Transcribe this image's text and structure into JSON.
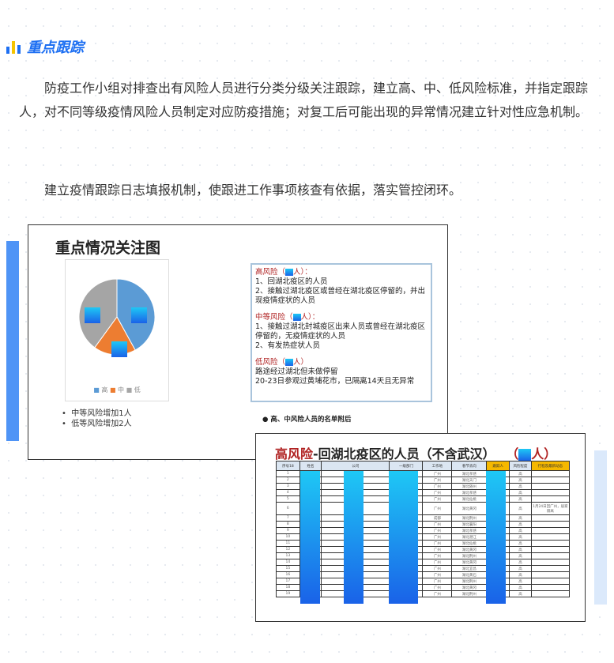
{
  "section": {
    "title": "重点跟踪",
    "accent": "#1d6ff2"
  },
  "paragraphs": [
    "防疫工作小组对排查出有风险人员进行分类分级关注跟踪，建立高、中、低风险标准，并指定跟踪人，对不同等级疫情风险人员制定对应防疫措施；对复工后可能出现的异常情况建立针对性应急机制。",
    "建立疫情跟踪日志填报机制，使跟进工作事项核查有依据，落实管控闭环。"
  ],
  "slide1": {
    "title": "重点情况关注图",
    "pie": {
      "slices": [
        {
          "label": "高",
          "fraction": 0.42,
          "color": "#5b9bd5"
        },
        {
          "label": "中",
          "fraction": 0.18,
          "color": "#ed7d31"
        },
        {
          "label": "低",
          "fraction": 0.4,
          "color": "#a5a5a5"
        }
      ]
    },
    "bullets": [
      "中等风险增加1人",
      "低等风险增加2人"
    ],
    "risk": [
      {
        "title": "高风险（",
        "suffix": "人）：",
        "lines": [
          "1、回湖北疫区的人员",
          "2、接触过湖北疫区或曾经在湖北疫区停留的，并出现疫情症状的人员"
        ]
      },
      {
        "title": "中等风险（",
        "suffix": "人）：",
        "lines": [
          "1、接触过湖北封城疫区出来人员或曾经在湖北疫区停留的，无疫情症状的人员",
          "2、有发热症状人员"
        ]
      },
      {
        "title": "低风险（",
        "suffix": "人）",
        "lines": [
          "路途经过湖北但未做停留",
          "20-23日参观过黄埔花市，已隔离14天且无异常"
        ]
      }
    ],
    "note": "●  高、中风险人员的名单附后"
  },
  "slide2": {
    "title_red": "高风险",
    "title_rest": "-回湖北疫区的人员（不含武汉）",
    "title_count_open": "（",
    "title_count_close": "人）",
    "headers": [
      "序号18",
      "姓名",
      "公司",
      "一级部门",
      "工作地",
      "春节去向",
      "跟踪人",
      "风险程度",
      "行程及最新动态"
    ],
    "rows": [
      [
        "1",
        "广州",
        "湖北孝感",
        "高",
        ""
      ],
      [
        "2",
        "广州",
        "湖北天门",
        "高",
        ""
      ],
      [
        "3",
        "广州",
        "湖北随州",
        "高",
        ""
      ],
      [
        "4",
        "广州",
        "湖北孝感",
        "高",
        ""
      ],
      [
        "5",
        "广州",
        "湖北仙桃",
        "高",
        ""
      ],
      [
        "6",
        "广州",
        "湖北黄冈",
        "高",
        "1月24日回广州，居家隔离"
      ],
      [
        "7",
        "成都",
        "湖北荆州",
        "高",
        ""
      ],
      [
        "8",
        "广州",
        "湖北襄阳",
        "高",
        ""
      ],
      [
        "9",
        "广州",
        "湖北孝感",
        "高",
        ""
      ],
      [
        "10",
        "广州",
        "湖北潜江",
        "高",
        ""
      ],
      [
        "11",
        "广州",
        "湖北仙桃",
        "高",
        ""
      ],
      [
        "12",
        "广州",
        "湖北黄冈",
        "高",
        ""
      ],
      [
        "13",
        "广州",
        "湖北荆州",
        "高",
        ""
      ],
      [
        "14",
        "广州",
        "湖北黄冈",
        "高",
        ""
      ],
      [
        "15",
        "广州",
        "湖北宜昌",
        "高",
        ""
      ],
      [
        "16",
        "广州",
        "湖北黄石",
        "高",
        ""
      ],
      [
        "17",
        "广州",
        "湖北荆州",
        "高",
        ""
      ],
      [
        "18",
        "广州",
        "湖北黄冈",
        "高",
        ""
      ],
      [
        "19",
        "广州",
        "湖北荆州",
        "高",
        ""
      ]
    ]
  }
}
